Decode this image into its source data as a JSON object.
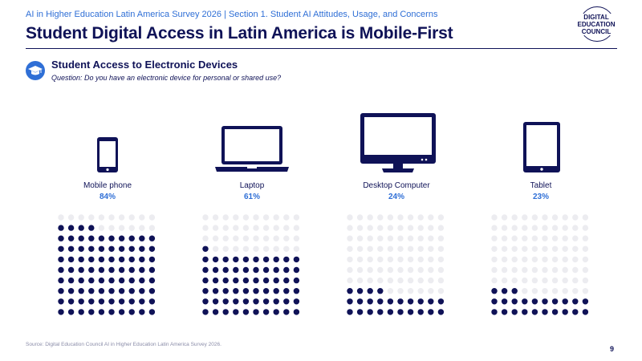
{
  "header": {
    "supertitle": "AI in Higher Education Latin America Survey 2026 | Section 1. Student AI Attitudes, Usage, and Concerns",
    "title": "Student Digital Access in Latin America is Mobile-First"
  },
  "logo": {
    "line1": "DIGITAL",
    "line2": "EDUCATION",
    "line3": "COUNCIL"
  },
  "section": {
    "title": "Student Access to Electronic Devices",
    "question": "Question:  Do you have an electronic device for personal or shared use?"
  },
  "chart_data": {
    "type": "waffle",
    "title": "Student Access to Electronic Devices",
    "grid": {
      "rows": 10,
      "cols": 10,
      "fill_from": "bottom"
    },
    "categories": [
      "Mobile phone",
      "Laptop",
      "Desktop Computer",
      "Tablet"
    ],
    "values": [
      84,
      61,
      24,
      23
    ],
    "value_labels": [
      "84%",
      "61%",
      "24%",
      "23%"
    ],
    "filled_color": "#0f1257",
    "empty_color": "#ececf0"
  },
  "footer": {
    "source": "Source: Digital Education Council AI in Higher Education Latin America Survey 2026.",
    "page": "9"
  },
  "colors": {
    "navy": "#0f1257",
    "accent": "#2f6fd6"
  }
}
